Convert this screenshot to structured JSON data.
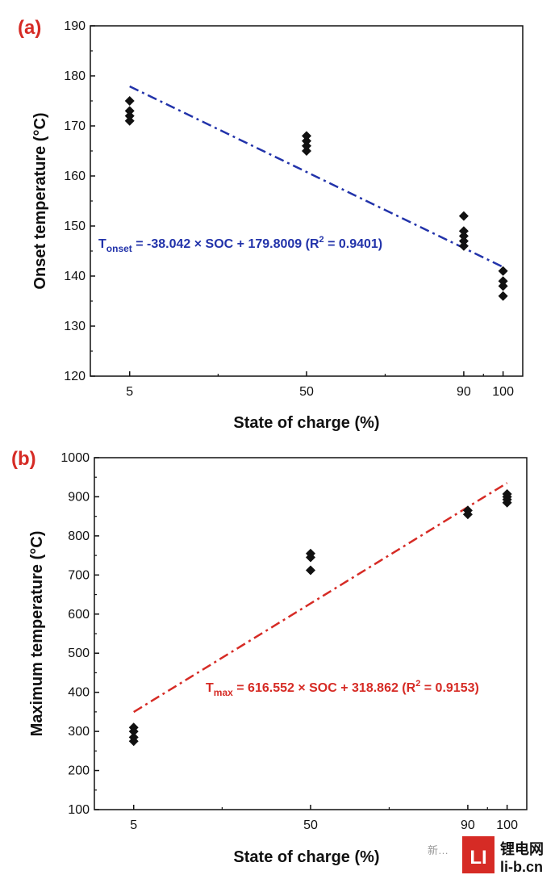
{
  "chart_data": [
    {
      "panel": "(a)",
      "type": "scatter",
      "xlabel": "State of charge (%)",
      "ylabel": "Onset temperature (°C)",
      "x_ticks": [
        5,
        50,
        90,
        100
      ],
      "xlim": [
        -5,
        105
      ],
      "ylim": [
        120,
        190
      ],
      "y_ticks": [
        120,
        130,
        140,
        150,
        160,
        170,
        180,
        190
      ],
      "points": [
        {
          "x": 5,
          "y": 171
        },
        {
          "x": 5,
          "y": 172
        },
        {
          "x": 5,
          "y": 173
        },
        {
          "x": 5,
          "y": 175
        },
        {
          "x": 50,
          "y": 165
        },
        {
          "x": 50,
          "y": 166
        },
        {
          "x": 50,
          "y": 167
        },
        {
          "x": 50,
          "y": 168
        },
        {
          "x": 90,
          "y": 146
        },
        {
          "x": 90,
          "y": 147
        },
        {
          "x": 90,
          "y": 148
        },
        {
          "x": 90,
          "y": 149
        },
        {
          "x": 90,
          "y": 152
        },
        {
          "x": 100,
          "y": 136
        },
        {
          "x": 100,
          "y": 138
        },
        {
          "x": 100,
          "y": 139
        },
        {
          "x": 100,
          "y": 141
        }
      ],
      "fit": {
        "x": [
          5,
          100
        ],
        "y": [
          177.9,
          141.8
        ],
        "color": "#2233aa",
        "style": "dash-dot"
      },
      "equation": {
        "prefix": "T",
        "sub": "onset",
        "body": " = -38.042 × SOC + 179.8009 (R",
        "sup": "2",
        "suffix": " = 0.9401)",
        "color": "#2233aa"
      }
    },
    {
      "panel": "(b)",
      "type": "scatter",
      "xlabel": "State of charge (%)",
      "ylabel": "Maximum temperature (°C)",
      "x_ticks": [
        5,
        50,
        90,
        100
      ],
      "xlim": [
        -5,
        105
      ],
      "ylim": [
        100,
        1000
      ],
      "y_ticks": [
        100,
        200,
        300,
        400,
        500,
        600,
        700,
        800,
        900,
        1000
      ],
      "points": [
        {
          "x": 5,
          "y": 275
        },
        {
          "x": 5,
          "y": 285
        },
        {
          "x": 5,
          "y": 300
        },
        {
          "x": 5,
          "y": 310
        },
        {
          "x": 50,
          "y": 712
        },
        {
          "x": 50,
          "y": 745
        },
        {
          "x": 50,
          "y": 755
        },
        {
          "x": 90,
          "y": 855
        },
        {
          "x": 90,
          "y": 865
        },
        {
          "x": 100,
          "y": 885
        },
        {
          "x": 100,
          "y": 893
        },
        {
          "x": 100,
          "y": 900
        },
        {
          "x": 100,
          "y": 907
        }
      ],
      "fit": {
        "x": [
          5,
          100
        ],
        "y": [
          349.7,
          935.4
        ],
        "color": "#d62b25",
        "style": "dash-dot"
      },
      "equation": {
        "prefix": "T",
        "sub": "max",
        "body": " = 616.552 × SOC + 318.862 (R",
        "sup": "2",
        "suffix": " = 0.9153)",
        "color": "#d62b25"
      }
    }
  ],
  "watermark": {
    "brand": "LI",
    "line1": "锂电网",
    "line2": "li-b.cn",
    "wechat_text": "新…"
  }
}
